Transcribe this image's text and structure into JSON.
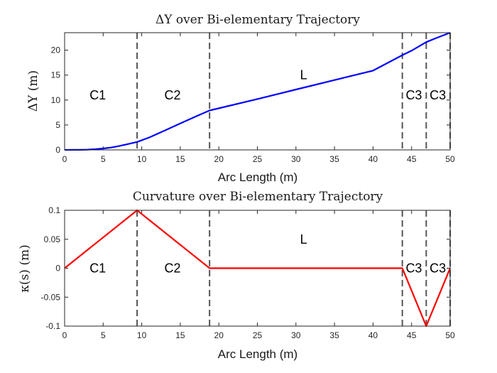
{
  "chart_data": [
    {
      "type": "line",
      "title": "ΔY over Bi-elementary Trajectory",
      "xlabel": "Arc Length (m)",
      "ylabel": "ΔY (m)",
      "xlim": [
        0,
        50
      ],
      "ylim": [
        0,
        23.5
      ],
      "xticks": [
        0,
        5,
        10,
        15,
        20,
        25,
        30,
        35,
        40,
        45,
        50
      ],
      "yticks": [
        0,
        5,
        10,
        15,
        20
      ],
      "color": "#0000ff",
      "series": [
        {
          "x": [
            0,
            1,
            2,
            3,
            4,
            5,
            6,
            7,
            8,
            9.4,
            11,
            13,
            15,
            17,
            18.8,
            25,
            30,
            35,
            40,
            43.8,
            45,
            46.9,
            48,
            50
          ],
          "values": [
            0,
            0.01,
            0.02,
            0.06,
            0.14,
            0.28,
            0.47,
            0.75,
            1.1,
            1.6,
            2.5,
            3.9,
            5.3,
            6.7,
            7.9,
            10.2,
            12.1,
            14.0,
            15.9,
            19.0,
            19.9,
            21.6,
            22.3,
            23.5
          ]
        }
      ],
      "dividers": [
        9.4,
        18.8,
        43.8,
        46.9,
        50
      ],
      "region_labels": [
        {
          "text": "C1",
          "x": 4.3,
          "y": 11
        },
        {
          "text": "C2",
          "x": 14.0,
          "y": 11
        },
        {
          "text": "L",
          "x": 31.0,
          "y": 15
        },
        {
          "text": "C3",
          "x": 45.3,
          "y": 11
        },
        {
          "text": "C3",
          "x": 48.4,
          "y": 11
        }
      ]
    },
    {
      "type": "line",
      "title": "Curvature over Bi-elementary Trajectory",
      "xlabel": "Arc Length (m)",
      "ylabel": "κ(s) (m)",
      "xlim": [
        0,
        50
      ],
      "ylim": [
        -0.1,
        0.1
      ],
      "xticks": [
        0,
        5,
        10,
        15,
        20,
        25,
        30,
        35,
        40,
        45,
        50
      ],
      "yticks": [
        -0.1,
        -0.05,
        0,
        0.05,
        0.1
      ],
      "color": "#ff0000",
      "series": [
        {
          "x": [
            0,
            9.4,
            18.8,
            43.8,
            46.9,
            50
          ],
          "values": [
            0,
            0.1,
            0,
            0,
            -0.1,
            0
          ]
        }
      ],
      "dividers": [
        9.4,
        18.8,
        43.8,
        46.9,
        50
      ],
      "region_labels": [
        {
          "text": "C1",
          "x": 4.3,
          "y": 0
        },
        {
          "text": "C2",
          "x": 14.0,
          "y": 0
        },
        {
          "text": "L",
          "x": 31.0,
          "y": 0.05
        },
        {
          "text": "C3",
          "x": 45.3,
          "y": 0
        },
        {
          "text": "C3",
          "x": 48.4,
          "y": 0
        }
      ]
    }
  ]
}
